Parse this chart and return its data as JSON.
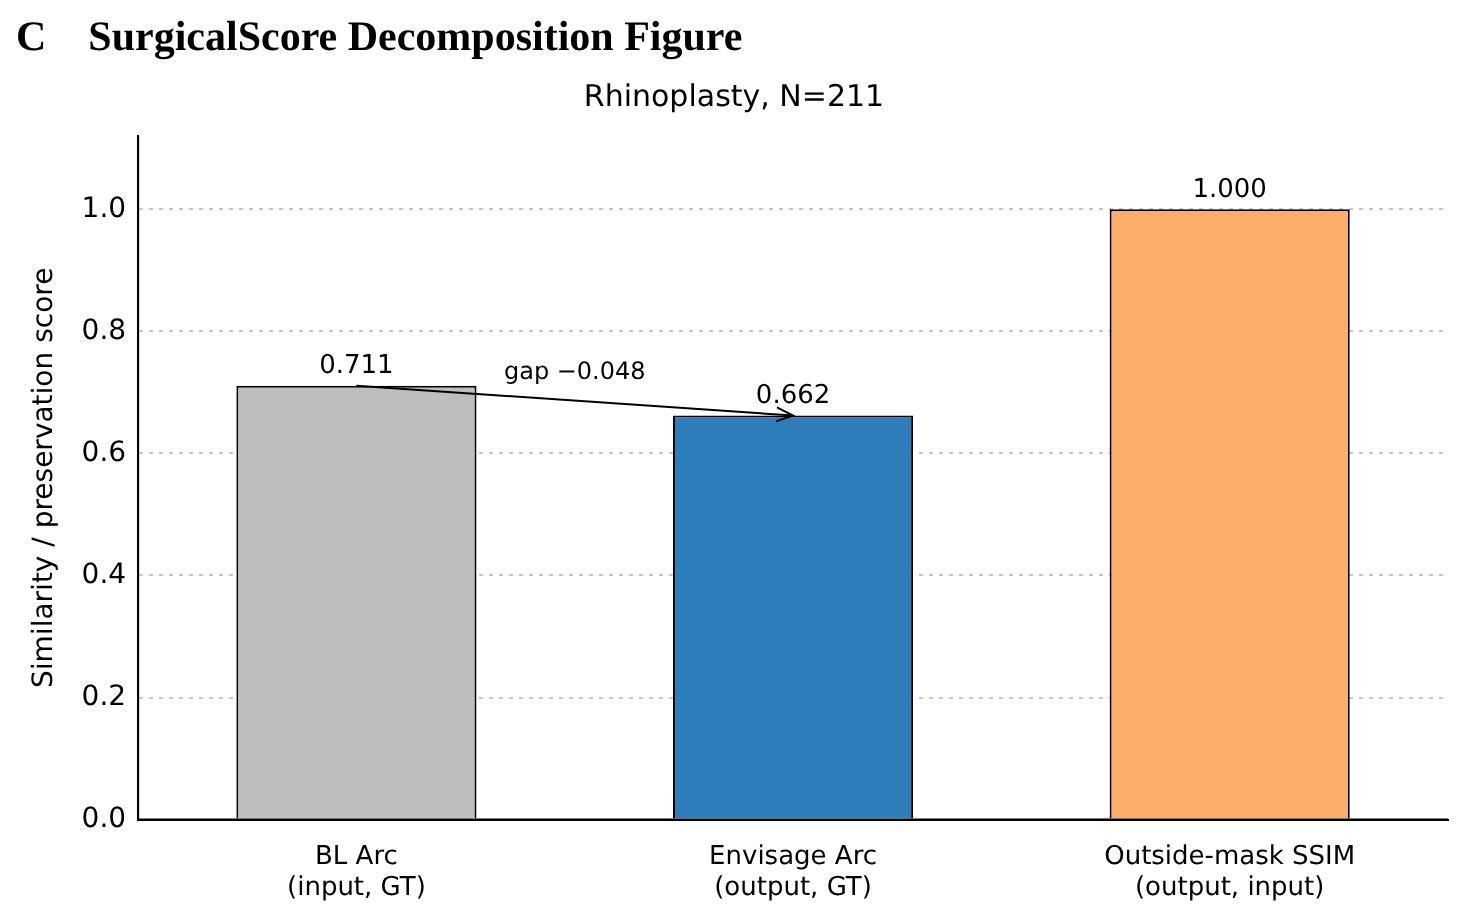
{
  "chart_data": {
    "type": "bar",
    "title": "C    SurgicalScore Decomposition Figure",
    "subtitle": "Rhinoplasty, N=211",
    "ylabel": "Similarity / preservation score",
    "categories": [
      "BL Arc\n(input, GT)",
      "Envisage Arc\n(output, GT)",
      "Outside-mask SSIM\n(output, input)"
    ],
    "values": [
      0.711,
      0.662,
      1.0
    ],
    "value_labels": [
      "0.711",
      "0.662",
      "1.000"
    ],
    "colors": [
      "#bebebe",
      "#2e7ebc",
      "#fdae6b"
    ],
    "ylim": [
      0,
      1.12
    ],
    "yticks": [
      {
        "value": 0,
        "label": "0.0"
      },
      {
        "value": 0.2,
        "label": "0.2"
      },
      {
        "value": 0.4,
        "label": "0.4"
      },
      {
        "value": 0.6,
        "label": "0.6"
      },
      {
        "value": 0.8,
        "label": "0.8"
      },
      {
        "value": 1,
        "label": "1.0"
      }
    ],
    "grid": "y",
    "legend": false,
    "annotations": [
      "gap −0.048"
    ]
  }
}
